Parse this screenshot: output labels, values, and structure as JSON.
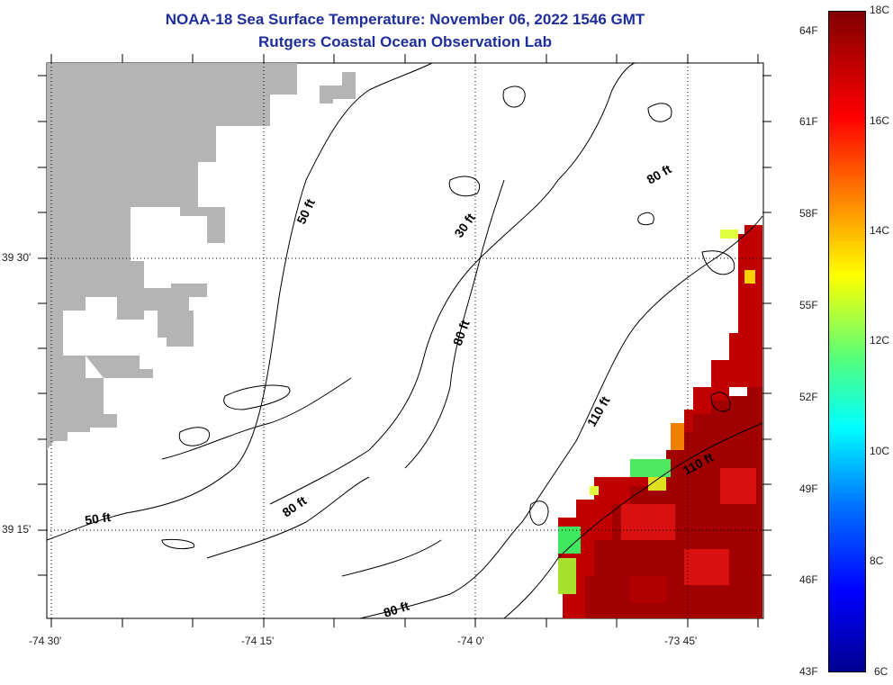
{
  "header": {
    "title_line1": "NOAA-18 Sea Surface Temperature:  November 06, 2022 1546 GMT",
    "title_line2": "Rutgers Coastal Ocean Observation Lab"
  },
  "map": {
    "x_labels": [
      "-74 30'",
      "-74 15'",
      "-74 0'",
      "-73 45'"
    ],
    "y_labels": [
      "39 30'",
      "39 15'"
    ],
    "contour_labels": [
      "50 ft",
      "50 ft",
      "30 ft",
      "80 ft",
      "80 ft",
      "80 ft",
      "80 ft",
      "110 ft",
      "110 ft"
    ],
    "colors": {
      "land": "#b4b4b4",
      "contour": "#000000",
      "grid": "#000000"
    }
  },
  "colorbar": {
    "fahrenheit_labels": [
      "64F",
      "61F",
      "58F",
      "55F",
      "52F",
      "49F",
      "46F",
      "43F"
    ],
    "celsius_labels": [
      "18C",
      "16C",
      "14C",
      "12C",
      "10C",
      "8C",
      "6C"
    ],
    "range_c": [
      6,
      18
    ]
  }
}
